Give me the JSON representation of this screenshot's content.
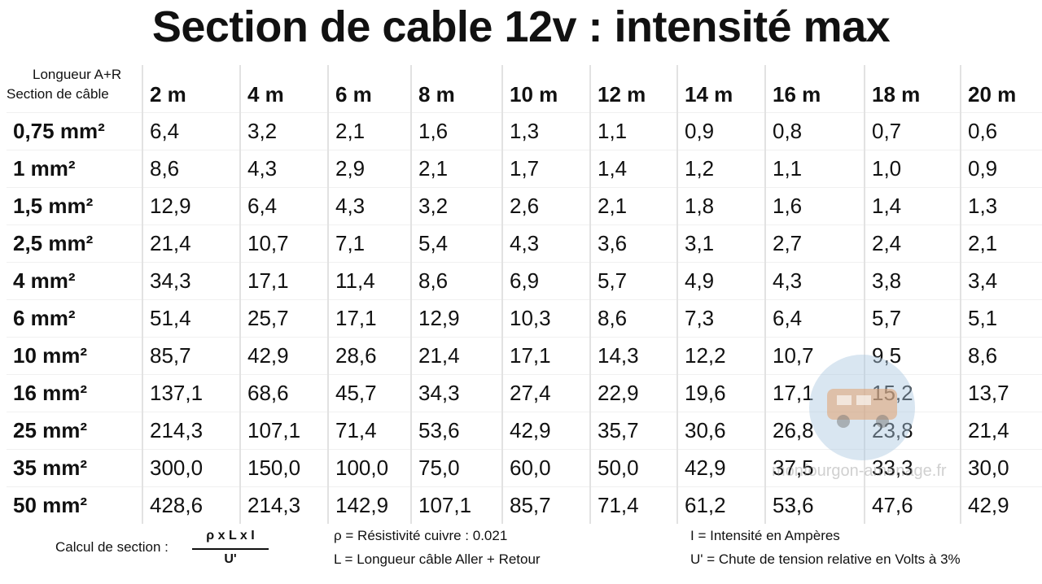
{
  "title": "Section de cable 12v : intensité max",
  "table": {
    "corner": {
      "length_label": "Longueur A+R",
      "section_label": "Section de câble"
    },
    "columns": [
      "2 m",
      "4 m",
      "6 m",
      "8 m",
      "10 m",
      "12 m",
      "14 m",
      "16 m",
      "18 m",
      "20 m"
    ],
    "rows": [
      {
        "label": "0,75 mm²",
        "values": [
          "6,4",
          "3,2",
          "2,1",
          "1,6",
          "1,3",
          "1,1",
          "0,9",
          "0,8",
          "0,7",
          "0,6"
        ]
      },
      {
        "label": "1 mm²",
        "values": [
          "8,6",
          "4,3",
          "2,9",
          "2,1",
          "1,7",
          "1,4",
          "1,2",
          "1,1",
          "1,0",
          "0,9"
        ]
      },
      {
        "label": "1,5 mm²",
        "values": [
          "12,9",
          "6,4",
          "4,3",
          "3,2",
          "2,6",
          "2,1",
          "1,8",
          "1,6",
          "1,4",
          "1,3"
        ]
      },
      {
        "label": "2,5 mm²",
        "values": [
          "21,4",
          "10,7",
          "7,1",
          "5,4",
          "4,3",
          "3,6",
          "3,1",
          "2,7",
          "2,4",
          "2,1"
        ]
      },
      {
        "label": "4 mm²",
        "values": [
          "34,3",
          "17,1",
          "11,4",
          "8,6",
          "6,9",
          "5,7",
          "4,9",
          "4,3",
          "3,8",
          "3,4"
        ]
      },
      {
        "label": "6 mm²",
        "values": [
          "51,4",
          "25,7",
          "17,1",
          "12,9",
          "10,3",
          "8,6",
          "7,3",
          "6,4",
          "5,7",
          "5,1"
        ]
      },
      {
        "label": "10 mm²",
        "values": [
          "85,7",
          "42,9",
          "28,6",
          "21,4",
          "17,1",
          "14,3",
          "12,2",
          "10,7",
          "9,5",
          "8,6"
        ]
      },
      {
        "label": "16 mm²",
        "values": [
          "137,1",
          "68,6",
          "45,7",
          "34,3",
          "27,4",
          "22,9",
          "19,6",
          "17,1",
          "15,2",
          "13,7"
        ]
      },
      {
        "label": "25 mm²",
        "values": [
          "214,3",
          "107,1",
          "71,4",
          "53,6",
          "42,9",
          "35,7",
          "30,6",
          "26,8",
          "23,8",
          "21,4"
        ]
      },
      {
        "label": "35 mm²",
        "values": [
          "300,0",
          "150,0",
          "100,0",
          "75,0",
          "60,0",
          "50,0",
          "42,9",
          "37,5",
          "33,3",
          "30,0"
        ]
      },
      {
        "label": "50 mm²",
        "values": [
          "428,6",
          "214,3",
          "142,9",
          "107,1",
          "85,7",
          "71,4",
          "61,2",
          "53,6",
          "47,6",
          "42,9"
        ]
      }
    ]
  },
  "footer": {
    "formula_label": "Calcul de section :",
    "numerator": "ρ x L x I",
    "denominator": "U'",
    "notes": [
      "ρ = Résistivité cuivre : 0.021",
      "L = Longueur câble Aller + Retour",
      "I = Intensité en Ampères",
      "U' = Chute de tension relative en Volts à 3%"
    ]
  },
  "watermark": "monfourgon-amenage.fr"
}
